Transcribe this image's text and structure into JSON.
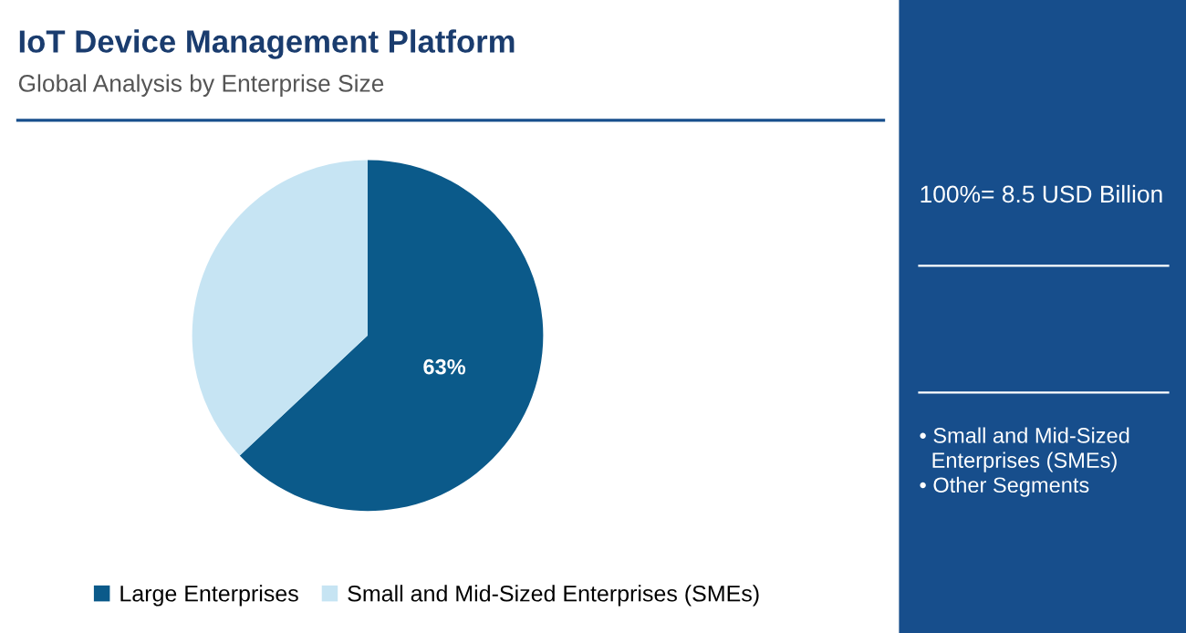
{
  "chart_data": {
    "type": "pie",
    "title": "IoT Device Management Platform",
    "subtitle": "Global Analysis by Enterprise Size",
    "categories": [
      "Large Enterprises",
      "Small and Mid-Sized Enterprises (SMEs)"
    ],
    "values": [
      63,
      37
    ],
    "colors": [
      "#0b5a8a",
      "#c6e4f3"
    ],
    "value_labels": [
      "63%",
      null
    ],
    "legend": "bottom",
    "annotations": [
      "100%= 8.5 USD Billion",
      "• Small and Mid-Sized\n  Enterprises (SMEs)\n• Other Segments"
    ]
  }
}
